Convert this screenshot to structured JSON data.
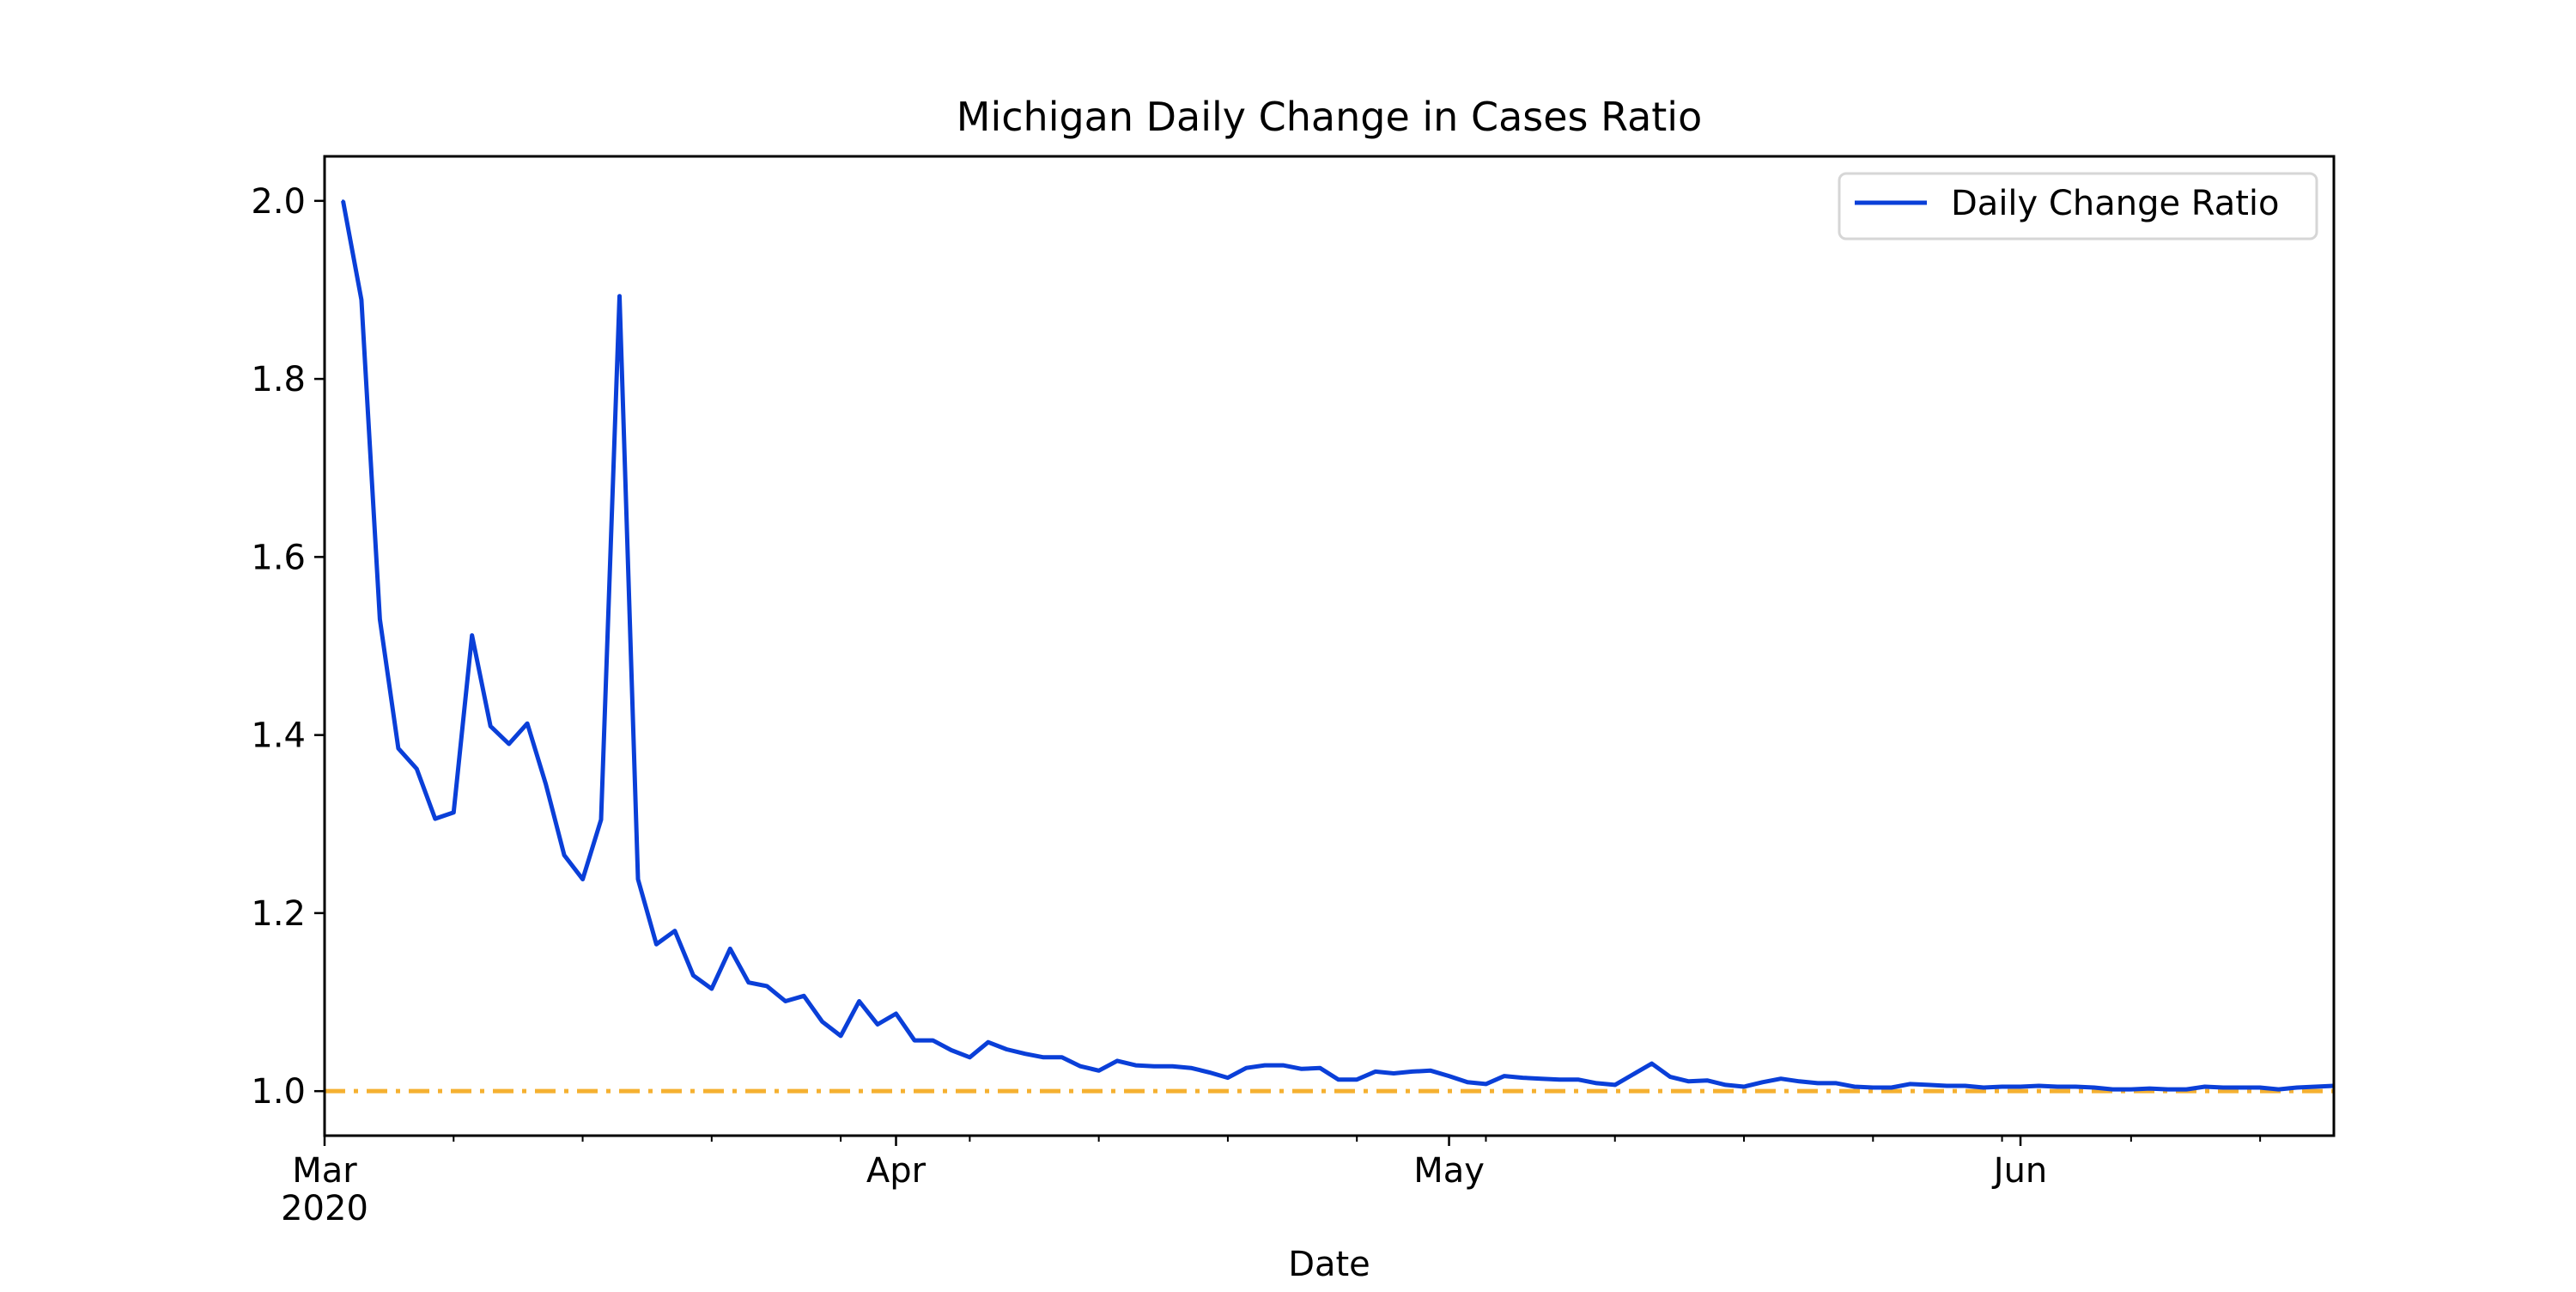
{
  "chart_data": {
    "type": "line",
    "title": "Michigan Daily Change in Cases Ratio",
    "xlabel": "Date",
    "ylabel": "",
    "x_range": [
      "2020-03-01",
      "2020-06-18"
    ],
    "ylim": [
      0.95,
      2.05
    ],
    "yticks": [
      1.0,
      1.2,
      1.4,
      1.6,
      1.8,
      2.0
    ],
    "ytick_labels": [
      "1.0",
      "1.2",
      "1.4",
      "1.6",
      "1.8",
      "2.0"
    ],
    "xticks": [
      {
        "date": "2020-03-01",
        "label": "Mar",
        "sublabel": "2020"
      },
      {
        "date": "2020-04-01",
        "label": "Apr",
        "sublabel": ""
      },
      {
        "date": "2020-05-01",
        "label": "May",
        "sublabel": ""
      },
      {
        "date": "2020-06-01",
        "label": "Jun",
        "sublabel": ""
      }
    ],
    "minor_ticks": [
      "2020-03-08",
      "2020-03-15",
      "2020-03-22",
      "2020-03-29",
      "2020-04-05",
      "2020-04-12",
      "2020-04-19",
      "2020-04-26",
      "2020-05-03",
      "2020-05-10",
      "2020-05-17",
      "2020-05-24",
      "2020-05-31",
      "2020-06-07",
      "2020-06-14"
    ],
    "grid": false,
    "legend": {
      "position": "top-right",
      "entries": [
        "Daily Change Ratio"
      ]
    },
    "reference_line": {
      "y": 1.0,
      "style": "dash-dot",
      "color": "#F5B131"
    },
    "series": [
      {
        "name": "Daily Change Ratio",
        "color": "#0A3FD8",
        "start_date": "2020-03-02",
        "values": [
          2.0,
          1.889,
          1.53,
          1.385,
          1.362,
          1.306,
          1.313,
          1.512,
          1.41,
          1.39,
          1.413,
          1.345,
          1.265,
          1.238,
          1.305,
          1.893,
          1.238,
          1.165,
          1.18,
          1.13,
          1.115,
          1.16,
          1.122,
          1.118,
          1.101,
          1.107,
          1.078,
          1.062,
          1.101,
          1.075,
          1.087,
          1.057,
          1.057,
          1.046,
          1.038,
          1.055,
          1.047,
          1.042,
          1.038,
          1.038,
          1.028,
          1.023,
          1.034,
          1.029,
          1.028,
          1.028,
          1.026,
          1.021,
          1.015,
          1.026,
          1.029,
          1.029,
          1.025,
          1.026,
          1.013,
          1.013,
          1.022,
          1.02,
          1.022,
          1.023,
          1.017,
          1.01,
          1.008,
          1.017,
          1.015,
          1.014,
          1.013,
          1.013,
          1.009,
          1.007,
          1.019,
          1.031,
          1.016,
          1.011,
          1.012,
          1.007,
          1.005,
          1.01,
          1.014,
          1.011,
          1.009,
          1.009,
          1.005,
          1.004,
          1.004,
          1.008,
          1.007,
          1.006,
          1.006,
          1.004,
          1.005,
          1.005,
          1.006,
          1.005,
          1.005,
          1.004,
          1.002,
          1.002,
          1.003,
          1.002,
          1.002,
          1.005,
          1.004,
          1.004,
          1.004,
          1.002,
          1.004,
          1.005,
          1.006
        ]
      }
    ]
  }
}
